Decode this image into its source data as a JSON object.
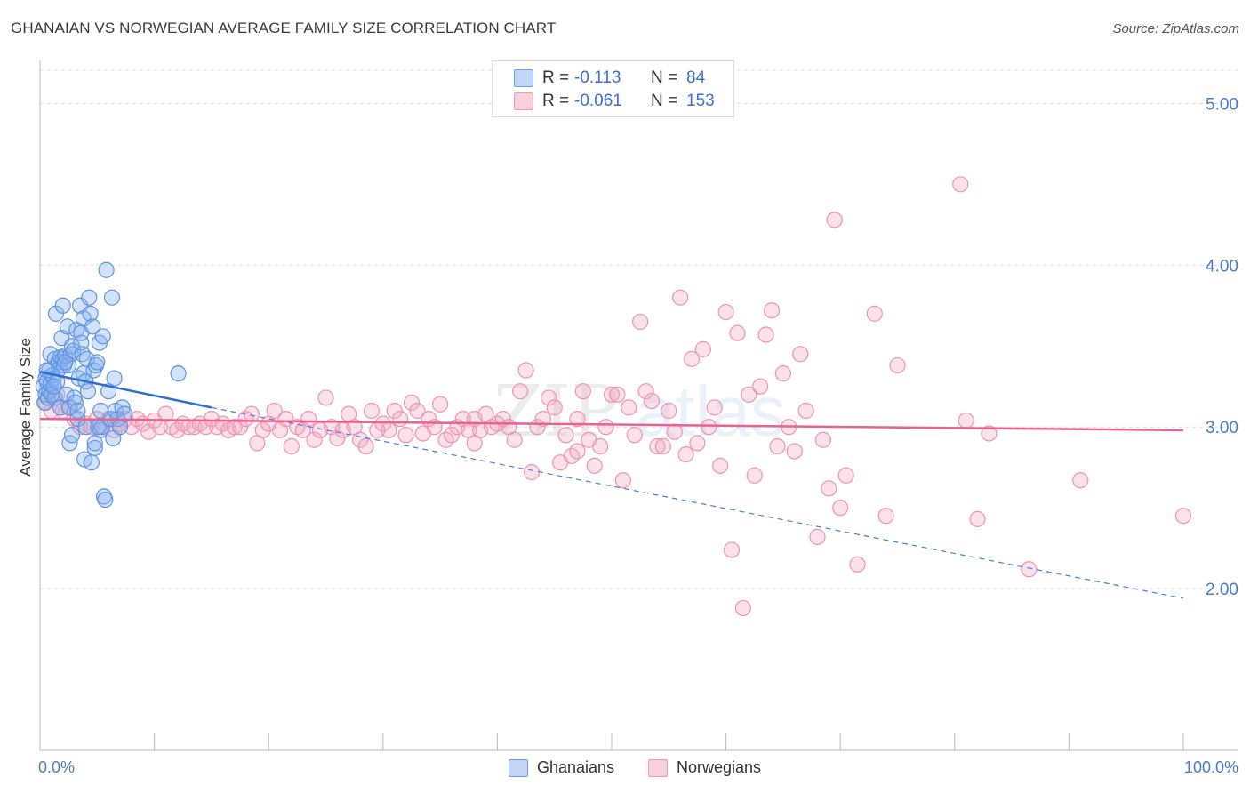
{
  "header": {
    "title": "GHANAIAN VS NORWEGIAN AVERAGE FAMILY SIZE CORRELATION CHART",
    "source": "Source: ZipAtlas.com"
  },
  "legend_top": {
    "rows": [
      {
        "r_label": "R =",
        "r_value": "-0.113",
        "n_label": "N =",
        "n_value": "84"
      },
      {
        "r_label": "R =",
        "r_value": "-0.061",
        "n_label": "N =",
        "n_value": "153"
      }
    ]
  },
  "legend_bottom": {
    "items": [
      {
        "label": "Ghanaians"
      },
      {
        "label": "Norwegians"
      }
    ]
  },
  "watermark": {
    "zip": "ZIP",
    "atlas": "atlas"
  },
  "chart_data": {
    "type": "scatter",
    "title": "GHANAIAN VS NORWEGIAN AVERAGE FAMILY SIZE CORRELATION CHART",
    "xlabel": "",
    "ylabel": "Average Family Size",
    "xlim": [
      0,
      100
    ],
    "ylim": [
      1.0,
      5.2
    ],
    "x_tick_labels": [
      "0.0%",
      "100.0%"
    ],
    "y_ticks": [
      2.0,
      3.0,
      4.0,
      5.0
    ],
    "y_tick_labels": [
      "2.00",
      "3.00",
      "4.00",
      "5.00"
    ],
    "grid": "horizontal dashed",
    "legend_position": "top-center and bottom",
    "colors": {
      "ghanaians": "#8ab4ee",
      "ghanaians_line": "#2f6fd0",
      "norwegians": "#f4a9c2",
      "norwegians_line": "#e8638f"
    },
    "series": [
      {
        "name": "Ghanaians",
        "r": -0.113,
        "n": 84,
        "trend": {
          "x": [
            0,
            15
          ],
          "y": [
            3.34,
            3.12
          ]
        },
        "trend_extension": {
          "x": [
            15,
            100
          ],
          "y": [
            3.12,
            1.94
          ]
        },
        "points": [
          [
            0.3,
            3.25
          ],
          [
            0.4,
            3.15
          ],
          [
            0.5,
            3.3
          ],
          [
            0.5,
            3.2
          ],
          [
            0.6,
            3.28
          ],
          [
            0.7,
            3.18
          ],
          [
            0.8,
            3.35
          ],
          [
            0.8,
            3.22
          ],
          [
            0.9,
            3.26
          ],
          [
            0.9,
            3.45
          ],
          [
            1.0,
            3.2
          ],
          [
            1.1,
            3.32
          ],
          [
            1.2,
            3.3
          ],
          [
            1.3,
            3.18
          ],
          [
            1.3,
            3.42
          ],
          [
            1.4,
            3.7
          ],
          [
            1.5,
            3.28
          ],
          [
            1.6,
            3.4
          ],
          [
            1.7,
            3.36
          ],
          [
            1.8,
            3.43
          ],
          [
            1.8,
            3.12
          ],
          [
            1.9,
            3.55
          ],
          [
            2.0,
            3.75
          ],
          [
            2.0,
            3.42
          ],
          [
            2.1,
            3.38
          ],
          [
            2.2,
            3.44
          ],
          [
            2.3,
            3.2
          ],
          [
            2.4,
            3.62
          ],
          [
            2.5,
            3.38
          ],
          [
            2.6,
            2.9
          ],
          [
            2.6,
            3.12
          ],
          [
            2.7,
            3.45
          ],
          [
            2.8,
            3.5
          ],
          [
            2.8,
            2.95
          ],
          [
            2.9,
            3.47
          ],
          [
            3.0,
            3.18
          ],
          [
            3.1,
            3.15
          ],
          [
            3.2,
            3.6
          ],
          [
            3.3,
            3.05
          ],
          [
            3.4,
            3.3
          ],
          [
            3.5,
            3.75
          ],
          [
            3.6,
            3.52
          ],
          [
            3.6,
            3.58
          ],
          [
            3.7,
            3.45
          ],
          [
            3.8,
            3.67
          ],
          [
            3.8,
            3.33
          ],
          [
            3.9,
            2.8
          ],
          [
            4.0,
            3.28
          ],
          [
            4.1,
            3.42
          ],
          [
            4.2,
            3.22
          ],
          [
            4.3,
            3.8
          ],
          [
            4.4,
            3.7
          ],
          [
            4.5,
            2.78
          ],
          [
            4.6,
            3.62
          ],
          [
            4.7,
            3.35
          ],
          [
            4.8,
            2.87
          ],
          [
            4.8,
            2.9
          ],
          [
            4.9,
            3.38
          ],
          [
            5.0,
            3.4
          ],
          [
            5.2,
            3.52
          ],
          [
            5.3,
            2.98
          ],
          [
            5.3,
            3.1
          ],
          [
            5.4,
            3.0
          ],
          [
            5.5,
            3.56
          ],
          [
            5.6,
            2.57
          ],
          [
            5.7,
            2.55
          ],
          [
            5.8,
            3.97
          ],
          [
            6.0,
            3.22
          ],
          [
            6.2,
            3.05
          ],
          [
            6.3,
            3.8
          ],
          [
            6.4,
            2.93
          ],
          [
            6.5,
            3.3
          ],
          [
            6.6,
            3.1
          ],
          [
            6.8,
            3.05
          ],
          [
            7.0,
            3.0
          ],
          [
            7.2,
            3.12
          ],
          [
            7.4,
            3.08
          ],
          [
            1.2,
            3.25
          ],
          [
            0.6,
            3.35
          ],
          [
            2.2,
            3.4
          ],
          [
            3.3,
            3.1
          ],
          [
            4.0,
            3.0
          ],
          [
            12.1,
            3.33
          ],
          [
            5.1,
            3.0
          ]
        ]
      },
      {
        "name": "Norwegians",
        "r": -0.061,
        "n": 153,
        "trend": {
          "x": [
            0,
            100
          ],
          "y": [
            3.05,
            2.98
          ]
        },
        "points": [
          [
            0.5,
            3.15
          ],
          [
            1.0,
            3.1
          ],
          [
            1.5,
            3.2
          ],
          [
            2.0,
            3.1
          ],
          [
            2.5,
            3.12
          ],
          [
            3.0,
            3.05
          ],
          [
            3.5,
            3.0
          ],
          [
            4.0,
            3.02
          ],
          [
            4.5,
            3.0
          ],
          [
            5.0,
            3.05
          ],
          [
            5.5,
            3.0
          ],
          [
            6.0,
            3.05
          ],
          [
            6.5,
            2.98
          ],
          [
            7.0,
            3.02
          ],
          [
            7.5,
            3.05
          ],
          [
            8.0,
            3.0
          ],
          [
            8.5,
            3.05
          ],
          [
            9.0,
            3.02
          ],
          [
            9.5,
            2.97
          ],
          [
            10.0,
            3.04
          ],
          [
            10.5,
            3.0
          ],
          [
            11.0,
            3.08
          ],
          [
            11.5,
            3.0
          ],
          [
            12.0,
            2.98
          ],
          [
            12.5,
            3.02
          ],
          [
            13.0,
            3.0
          ],
          [
            13.5,
            3.0
          ],
          [
            14.0,
            3.02
          ],
          [
            14.5,
            3.0
          ],
          [
            15.0,
            3.05
          ],
          [
            15.5,
            3.0
          ],
          [
            16.0,
            3.02
          ],
          [
            16.5,
            2.98
          ],
          [
            17.0,
            3.0
          ],
          [
            17.5,
            3.0
          ],
          [
            18.0,
            3.05
          ],
          [
            18.5,
            3.08
          ],
          [
            19.0,
            2.9
          ],
          [
            19.5,
            2.98
          ],
          [
            20.0,
            3.02
          ],
          [
            20.5,
            3.1
          ],
          [
            21.0,
            2.98
          ],
          [
            21.5,
            3.05
          ],
          [
            22.0,
            2.88
          ],
          [
            22.5,
            3.0
          ],
          [
            23.0,
            2.98
          ],
          [
            23.5,
            3.05
          ],
          [
            24.0,
            2.92
          ],
          [
            24.5,
            2.98
          ],
          [
            25.0,
            3.18
          ],
          [
            25.5,
            3.0
          ],
          [
            26.0,
            2.93
          ],
          [
            26.5,
            2.98
          ],
          [
            27.0,
            3.08
          ],
          [
            27.5,
            3.0
          ],
          [
            28.0,
            2.92
          ],
          [
            28.5,
            2.88
          ],
          [
            29.0,
            3.1
          ],
          [
            29.5,
            2.98
          ],
          [
            30.0,
            3.02
          ],
          [
            30.5,
            2.98
          ],
          [
            31.0,
            3.1
          ],
          [
            31.5,
            3.05
          ],
          [
            32.0,
            2.95
          ],
          [
            32.5,
            3.15
          ],
          [
            33.0,
            3.1
          ],
          [
            33.5,
            2.96
          ],
          [
            34.0,
            3.05
          ],
          [
            34.5,
            3.0
          ],
          [
            35.0,
            3.14
          ],
          [
            35.5,
            2.92
          ],
          [
            36.0,
            2.95
          ],
          [
            36.5,
            3.0
          ],
          [
            37.0,
            3.05
          ],
          [
            37.5,
            2.98
          ],
          [
            38.0,
            2.9
          ],
          [
            38.5,
            2.98
          ],
          [
            39.0,
            3.08
          ],
          [
            39.5,
            3.0
          ],
          [
            40.0,
            3.02
          ],
          [
            40.5,
            3.05
          ],
          [
            41.0,
            3.0
          ],
          [
            41.5,
            2.92
          ],
          [
            42.0,
            3.22
          ],
          [
            42.5,
            3.35
          ],
          [
            43.0,
            2.72
          ],
          [
            43.5,
            3.0
          ],
          [
            44.0,
            3.05
          ],
          [
            44.5,
            3.18
          ],
          [
            45.0,
            3.12
          ],
          [
            45.5,
            2.78
          ],
          [
            46.0,
            2.95
          ],
          [
            46.5,
            2.82
          ],
          [
            47.0,
            2.85
          ],
          [
            47.5,
            3.22
          ],
          [
            48.0,
            2.92
          ],
          [
            48.5,
            2.76
          ],
          [
            49.0,
            2.88
          ],
          [
            49.5,
            3.0
          ],
          [
            50.0,
            3.2
          ],
          [
            50.5,
            3.2
          ],
          [
            51.0,
            2.67
          ],
          [
            51.5,
            3.12
          ],
          [
            52.0,
            2.95
          ],
          [
            52.5,
            3.65
          ],
          [
            53.0,
            3.22
          ],
          [
            53.5,
            3.16
          ],
          [
            54.0,
            2.88
          ],
          [
            54.5,
            2.88
          ],
          [
            55.0,
            3.1
          ],
          [
            55.5,
            2.97
          ],
          [
            56.0,
            3.8
          ],
          [
            56.5,
            2.83
          ],
          [
            57.0,
            3.42
          ],
          [
            57.5,
            2.9
          ],
          [
            58.0,
            3.48
          ],
          [
            58.5,
            3.0
          ],
          [
            59.0,
            3.12
          ],
          [
            59.5,
            2.76
          ],
          [
            60.0,
            3.71
          ],
          [
            60.5,
            2.24
          ],
          [
            61.0,
            3.58
          ],
          [
            61.5,
            1.88
          ],
          [
            62.0,
            3.2
          ],
          [
            62.5,
            2.7
          ],
          [
            63.0,
            3.25
          ],
          [
            63.5,
            3.57
          ],
          [
            64.0,
            3.72
          ],
          [
            64.5,
            2.88
          ],
          [
            65.0,
            3.33
          ],
          [
            65.5,
            3.0
          ],
          [
            66.0,
            2.85
          ],
          [
            66.5,
            3.45
          ],
          [
            67.0,
            3.1
          ],
          [
            68.0,
            2.32
          ],
          [
            68.5,
            2.92
          ],
          [
            69.0,
            2.62
          ],
          [
            69.5,
            4.28
          ],
          [
            70.0,
            2.5
          ],
          [
            70.5,
            2.7
          ],
          [
            71.5,
            2.15
          ],
          [
            73.0,
            3.7
          ],
          [
            74.0,
            2.45
          ],
          [
            75.0,
            3.38
          ],
          [
            80.5,
            4.5
          ],
          [
            81.0,
            3.04
          ],
          [
            82.0,
            2.43
          ],
          [
            83.0,
            2.96
          ],
          [
            86.5,
            2.12
          ],
          [
            91.0,
            2.67
          ],
          [
            100.0,
            2.45
          ],
          [
            38.0,
            3.05
          ],
          [
            47.0,
            3.05
          ]
        ]
      }
    ]
  }
}
